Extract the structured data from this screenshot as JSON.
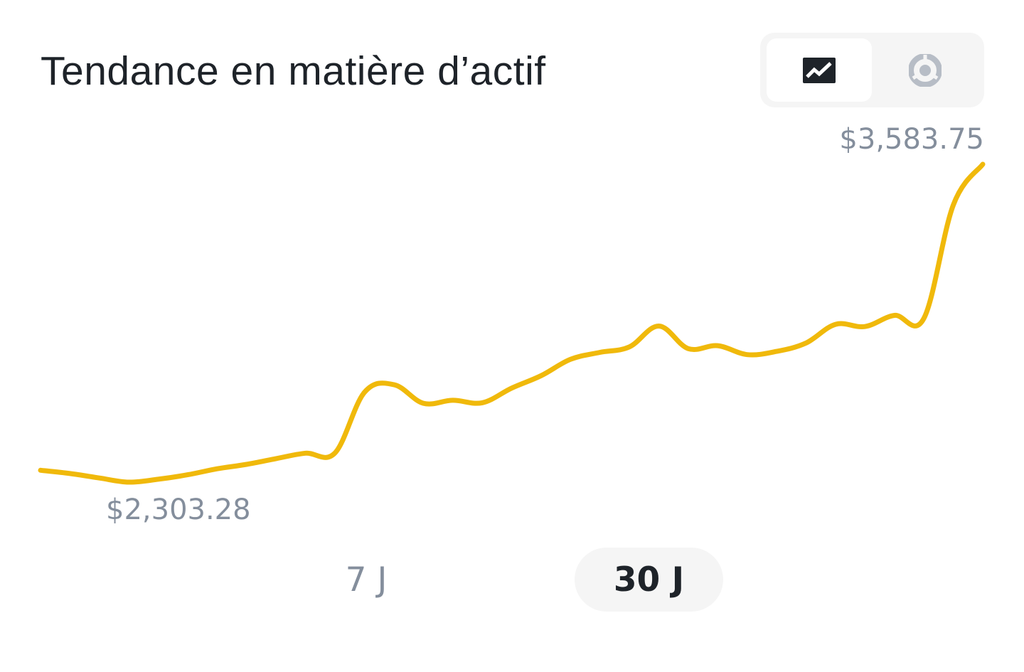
{
  "header": {
    "title": "Tendance en matière d’actif"
  },
  "view_toggle": {
    "options": [
      {
        "name": "line-chart",
        "icon": "line-chart-icon",
        "selected": true
      },
      {
        "name": "pie-chart",
        "icon": "pie-chart-icon",
        "selected": false
      }
    ]
  },
  "chart": {
    "max_label": "$3,583.75",
    "min_label": "$2,303.28",
    "line_color": "#f0b90b"
  },
  "range_tabs": [
    {
      "label": "7 J",
      "selected": false
    },
    {
      "label": "30 J",
      "selected": true
    }
  ],
  "chart_data": {
    "type": "line",
    "series": [
      {
        "values": [
          2351,
          2338,
          2320,
          2303.28,
          2315,
          2333,
          2357,
          2375,
          2398,
          2420,
          2421,
          2665,
          2696,
          2621,
          2633,
          2623,
          2682,
          2732,
          2798,
          2826,
          2848,
          2932,
          2841,
          2853,
          2817,
          2830,
          2864,
          2939,
          2930,
          2975,
          2963,
          3420,
          3583.75
        ]
      }
    ],
    "min": 2303.28,
    "max": 3583.75
  }
}
